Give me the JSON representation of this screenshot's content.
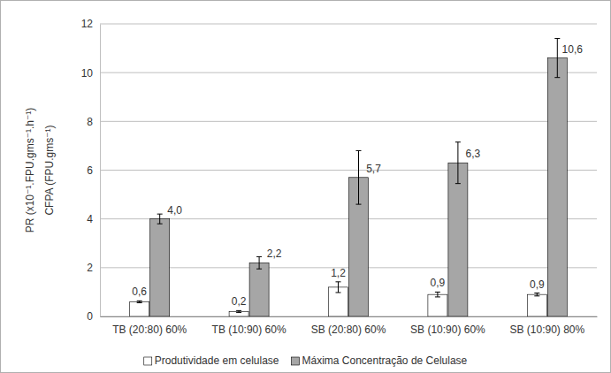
{
  "chart_data": {
    "type": "bar",
    "y_label": [
      "PR (x10⁻¹.FPU.gms⁻¹.h⁻¹)",
      "CFPA (FPU.gms⁻¹)"
    ],
    "categories": [
      "TB (20:80) 60%",
      "TB (10:90) 60%",
      "SB (20:80) 60%",
      "SB (10:90) 60%",
      "SB (10:90) 80%"
    ],
    "series": [
      {
        "name": "Produtividade em celulase",
        "color": "#ffffff",
        "values": [
          0.6,
          0.2,
          1.2,
          0.9,
          0.9
        ],
        "value_labels": [
          "0,6",
          "0,2",
          "1,2",
          "0,9",
          "0,9"
        ],
        "errors": [
          0.04,
          0.04,
          0.22,
          0.1,
          0.06
        ]
      },
      {
        "name": "Máxima Concentração de Celulase",
        "color": "#a6a6a6",
        "values": [
          4.0,
          2.2,
          5.7,
          6.3,
          10.6
        ],
        "value_labels": [
          "4,0",
          "2,2",
          "5,7",
          "6,3",
          "10,6"
        ],
        "errors": [
          0.2,
          0.25,
          1.1,
          0.85,
          0.8
        ]
      }
    ],
    "ylim": [
      0,
      12
    ],
    "yticks": [
      0,
      2,
      4,
      6,
      8,
      10,
      12
    ],
    "grid": true,
    "data_labels": true,
    "legend": "bottom"
  }
}
